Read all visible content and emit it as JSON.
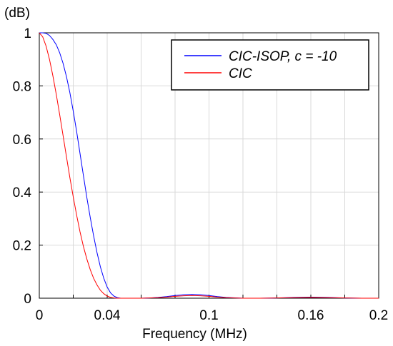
{
  "chart_data": {
    "type": "line",
    "title": "",
    "xlabel": "Frequency (MHz)",
    "ylabel": "(dB)",
    "xlim": [
      0,
      0.2
    ],
    "ylim": [
      0,
      1
    ],
    "xticks": [
      0,
      0.04,
      0.1,
      0.16,
      0.2
    ],
    "xtick_labels": [
      "0",
      "0.04",
      "0.1",
      "0.16",
      "0.2"
    ],
    "yticks": [
      0,
      0.2,
      0.4,
      0.6,
      0.8,
      1
    ],
    "ytick_labels": [
      "0",
      "0.2",
      "0.4",
      "0.6",
      "0.8",
      "1"
    ],
    "xgrid": [
      0,
      0.02,
      0.04,
      0.06,
      0.08,
      0.1,
      0.12,
      0.14,
      0.16,
      0.18,
      0.2
    ],
    "grid": true,
    "legend_position": "top-right",
    "series": [
      {
        "name": "CIC-ISOP, c = -10",
        "color": "#0000ff",
        "x": [
          0,
          0.002,
          0.004,
          0.006,
          0.008,
          0.01,
          0.012,
          0.014,
          0.016,
          0.018,
          0.02,
          0.022,
          0.024,
          0.026,
          0.028,
          0.03,
          0.032,
          0.034,
          0.036,
          0.038,
          0.04,
          0.042,
          0.044,
          0.046,
          0.048,
          0.05,
          0.052,
          0.055,
          0.06,
          0.065,
          0.07,
          0.075,
          0.08,
          0.085,
          0.09,
          0.095,
          0.1,
          0.105,
          0.11,
          0.12,
          0.13,
          0.14,
          0.15,
          0.16,
          0.17,
          0.18,
          0.19,
          0.2
        ],
        "y": [
          1.0,
          1.0,
          0.998,
          0.99,
          0.975,
          0.955,
          0.925,
          0.885,
          0.835,
          0.775,
          0.705,
          0.628,
          0.545,
          0.462,
          0.38,
          0.305,
          0.235,
          0.172,
          0.118,
          0.075,
          0.042,
          0.02,
          0.008,
          0.002,
          0.0,
          0.0,
          0.0,
          0.0,
          0.0,
          0.001,
          0.003,
          0.006,
          0.01,
          0.013,
          0.014,
          0.013,
          0.01,
          0.006,
          0.003,
          0.0,
          0.0,
          0.001,
          0.003,
          0.004,
          0.003,
          0.001,
          0.0,
          0.0
        ]
      },
      {
        "name": "CIC",
        "color": "#ff0000",
        "x": [
          0,
          0.002,
          0.004,
          0.006,
          0.008,
          0.01,
          0.012,
          0.014,
          0.016,
          0.018,
          0.02,
          0.022,
          0.024,
          0.026,
          0.028,
          0.03,
          0.032,
          0.034,
          0.036,
          0.038,
          0.04,
          0.042,
          0.044,
          0.046,
          0.048,
          0.05,
          0.052,
          0.055,
          0.06,
          0.065,
          0.07,
          0.075,
          0.08,
          0.085,
          0.09,
          0.095,
          0.1,
          0.105,
          0.11,
          0.12,
          0.13,
          0.14,
          0.15,
          0.16,
          0.17,
          0.18,
          0.19,
          0.2
        ],
        "y": [
          1.0,
          0.985,
          0.95,
          0.9,
          0.838,
          0.768,
          0.692,
          0.613,
          0.533,
          0.455,
          0.382,
          0.313,
          0.25,
          0.195,
          0.148,
          0.108,
          0.075,
          0.05,
          0.03,
          0.017,
          0.008,
          0.003,
          0.001,
          0.0,
          0.0,
          0.0,
          0.0,
          0.0,
          0.0,
          0.001,
          0.002,
          0.004,
          0.007,
          0.009,
          0.01,
          0.009,
          0.007,
          0.004,
          0.002,
          0.0,
          0.0,
          0.001,
          0.002,
          0.003,
          0.002,
          0.001,
          0.0,
          0.0
        ]
      }
    ]
  }
}
